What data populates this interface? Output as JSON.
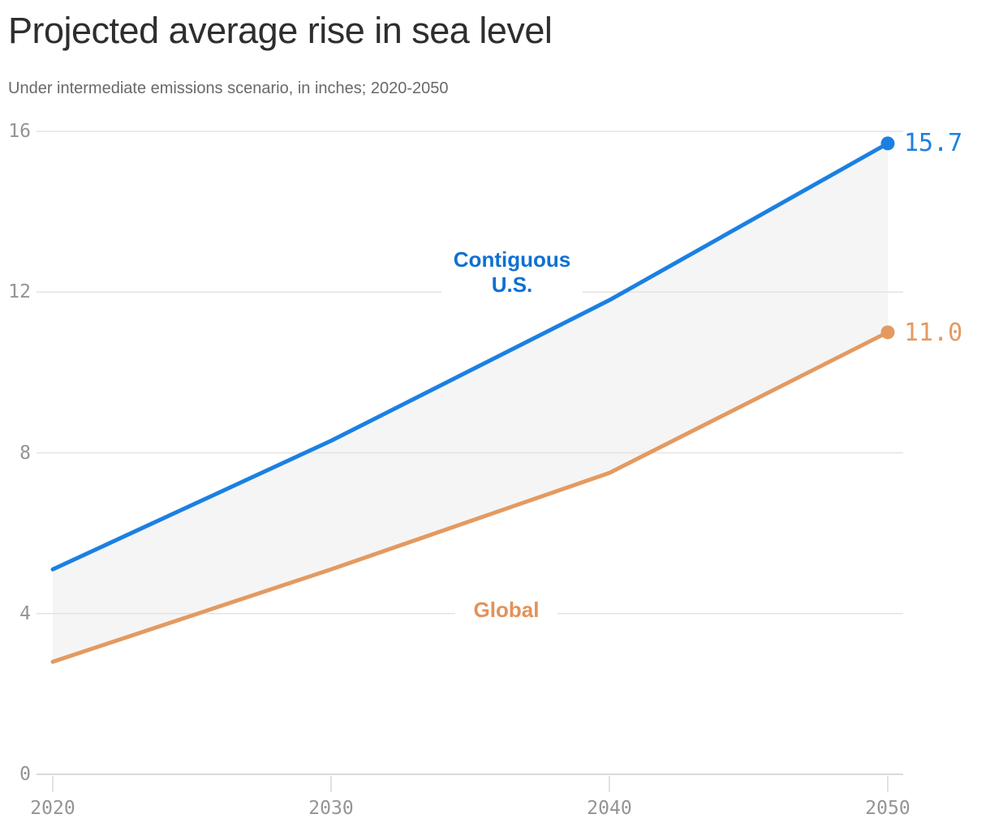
{
  "header": {
    "title": "Projected average rise in sea level",
    "subtitle": "Under intermediate emissions scenario, in inches; 2020-2050"
  },
  "chart_data": {
    "type": "line",
    "title": "Projected average rise in sea level",
    "subtitle": "Under intermediate emissions scenario, in inches; 2020-2050",
    "units": "inches",
    "x": [
      2020,
      2030,
      2040,
      2050
    ],
    "x_tick_labels": [
      "2020",
      "2030",
      "2040",
      "2050"
    ],
    "y_ticks": [
      0,
      4,
      8,
      12,
      16
    ],
    "y_tick_labels": [
      "0",
      "4",
      "8",
      "12",
      "16"
    ],
    "xlim": [
      2020,
      2050
    ],
    "ylim": [
      0,
      16
    ],
    "xlabel": "",
    "ylabel": "",
    "grid": "horizontal",
    "legend_position": "inline-labels",
    "series": [
      {
        "name": "Contiguous U.S.",
        "values": [
          5.1,
          8.3,
          11.8,
          15.7
        ],
        "color": "#1b80e2",
        "label_color": "#0f70d2",
        "end_label": "15.7"
      },
      {
        "name": "Global",
        "values": [
          2.8,
          5.1,
          7.5,
          11.0
        ],
        "color": "#e39a61",
        "label_color": "#e2925a",
        "end_label": "11.0"
      }
    ],
    "band_fill_color": "#f5f5f5",
    "colors": {
      "gridline": "#e3e3e3",
      "axis_line": "#d9d9d9",
      "tick_label": "#949494",
      "title": "#2e2e2e",
      "subtitle": "#696969",
      "background": "#ffffff"
    }
  }
}
